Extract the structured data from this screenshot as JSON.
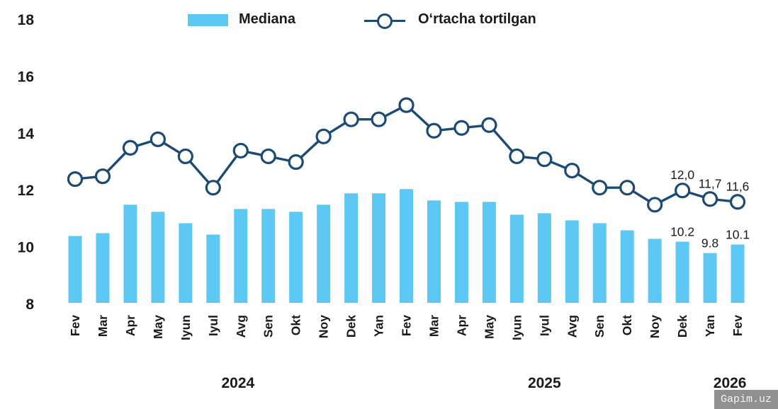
{
  "legend": {
    "bar_label": "Mediana",
    "line_label": "O‘rtacha tortilgan"
  },
  "colors": {
    "bar": "#5cc8f3",
    "line": "#1b4a75",
    "text": "#1a1a1a",
    "marker_fill": "#ffffff",
    "watermark_bg": "#8f8f8f",
    "watermark_text": "#f5f5f5"
  },
  "watermark": {
    "text": "Gapim.uz"
  },
  "chart_data": {
    "type": "combo",
    "title": "",
    "xlabel": "",
    "ylabel": "",
    "ylim": [
      8,
      18
    ],
    "yticks": [
      8,
      10,
      12,
      14,
      16,
      18
    ],
    "grid": false,
    "legend_position": "top",
    "categories": [
      "Fev",
      "Mar",
      "Apr",
      "May",
      "Iyun",
      "Iyul",
      "Avg",
      "Sen",
      "Okt",
      "Noy",
      "Dek",
      "Yan",
      "Fev",
      "Mar",
      "Apr",
      "May",
      "Iyun",
      "Iyul",
      "Avg",
      "Sen",
      "Okt",
      "Noy",
      "Dek",
      "Yan",
      "Fev"
    ],
    "year_groups": [
      {
        "label": "2024",
        "start_index": 0,
        "end_index": 10,
        "center_index": 5.9
      },
      {
        "label": "2025",
        "start_index": 11,
        "end_index": 22,
        "center_index": 17.0
      },
      {
        "label": "2026",
        "start_index": 23,
        "end_index": 24,
        "center_index": 23.72
      }
    ],
    "series": [
      {
        "name": "Mediana",
        "type": "bar",
        "values": [
          10.4,
          10.5,
          11.5,
          11.25,
          10.85,
          10.45,
          11.35,
          11.35,
          11.25,
          11.5,
          11.9,
          11.9,
          12.05,
          11.65,
          11.6,
          11.6,
          11.15,
          11.2,
          10.95,
          10.85,
          10.6,
          10.3,
          10.2,
          9.8,
          10.1
        ]
      },
      {
        "name": "O‘rtacha tortilgan",
        "type": "line",
        "marker": "open-circle",
        "values": [
          12.4,
          12.5,
          13.5,
          13.8,
          13.2,
          12.1,
          13.4,
          13.2,
          13.0,
          13.9,
          14.5,
          14.5,
          15.0,
          14.1,
          14.2,
          14.3,
          13.2,
          13.1,
          12.7,
          12.1,
          12.1,
          11.5,
          12.0,
          11.7,
          11.6
        ]
      }
    ],
    "point_labels": {
      "line": [
        {
          "index": 22,
          "text": "12,0"
        },
        {
          "index": 23,
          "text": "11,7"
        },
        {
          "index": 24,
          "text": "11,6"
        }
      ],
      "bar": [
        {
          "index": 22,
          "text": "10.2"
        },
        {
          "index": 23,
          "text": "9.8"
        },
        {
          "index": 24,
          "text": "10.1"
        }
      ]
    }
  }
}
